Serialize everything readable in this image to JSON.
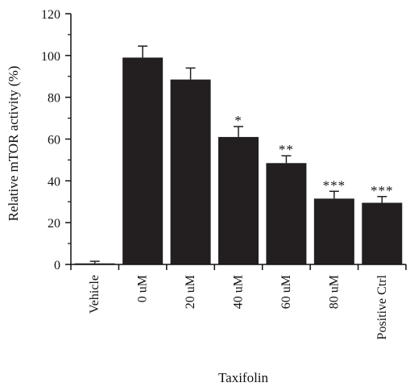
{
  "chart_data": {
    "type": "bar",
    "categories": [
      "Vehicle",
      "0 uM",
      "20 uM",
      "40 uM",
      "60 uM",
      "80 uM",
      "Positive Ctrl"
    ],
    "values": [
      0.5,
      99,
      88.5,
      61,
      48.5,
      31.5,
      29.5
    ],
    "errors": [
      1,
      5.5,
      5.5,
      5,
      3.5,
      3.5,
      3
    ],
    "significance": [
      "",
      "",
      "",
      "*",
      "**",
      "***",
      "***"
    ],
    "ylabel": "Relative mTOR activity (%)",
    "xlabel": "Taxifolin",
    "ylim": [
      0,
      120
    ],
    "yticks": [
      0,
      20,
      40,
      60,
      80,
      100,
      120
    ],
    "grid": false,
    "colors": {
      "bar": "#231f20",
      "axis": "#111111"
    }
  }
}
